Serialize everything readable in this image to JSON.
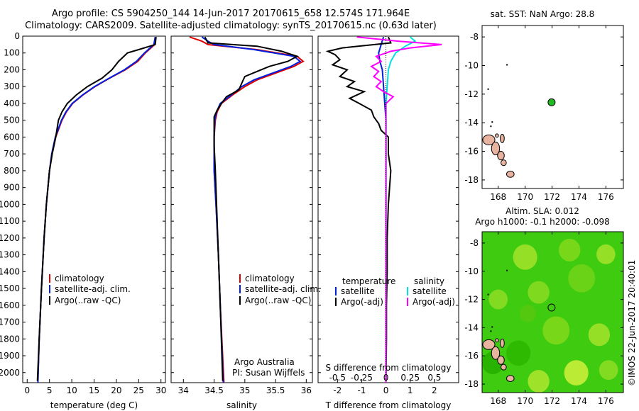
{
  "header": {
    "line1": "Argo profile: CS 5904250_144 14-Jun-2017 20170615_658 12.574S 171.964E",
    "line2": "Climatology: CARS2009. Satellite-adjusted climatology: synTS_20170615.nc (0.63d later)"
  },
  "colors": {
    "climatology": "#e00000",
    "satellite": "#0020e0",
    "argo": "#000000",
    "sal_satellite": "#00e0e0",
    "sal_argo": "#ff00ff",
    "land": "#e8b4a0",
    "map_green": "#33cc00"
  },
  "watermark": "©IMOS 22-Jun-2017 20:40:01",
  "chart_data": [
    {
      "type": "line",
      "id": "temperature",
      "xlabel": "temperature (deg C)",
      "xlim": [
        -1,
        31
      ],
      "ylim": [
        2060,
        0
      ],
      "xticks": [
        0,
        5,
        10,
        15,
        20,
        25,
        30
      ],
      "yticks": [
        0,
        100,
        200,
        300,
        400,
        500,
        600,
        700,
        800,
        900,
        1000,
        1100,
        1200,
        1300,
        1400,
        1500,
        1600,
        1700,
        1800,
        1900,
        2000
      ],
      "legend": [
        "climatology",
        "satellite-adj. clim.",
        "Argo(..raw -QC)"
      ],
      "series": [
        {
          "name": "climatology",
          "color": "#e00000",
          "depth": [
            5,
            50,
            100,
            150,
            200,
            250,
            300,
            350,
            400,
            450,
            500,
            600,
            700,
            800,
            1000,
            1200,
            1500,
            1800,
            2060
          ],
          "values": [
            28.8,
            28.6,
            26.5,
            24.8,
            22.0,
            18.5,
            15.2,
            12.5,
            10.2,
            8.8,
            7.8,
            6.4,
            5.6,
            5.0,
            4.3,
            3.8,
            3.2,
            2.7,
            2.4
          ]
        },
        {
          "name": "satellite-adj. clim.",
          "color": "#0020e0",
          "depth": [
            5,
            50,
            100,
            150,
            200,
            250,
            300,
            350,
            400,
            450,
            500,
            600,
            700,
            800,
            1000,
            1200,
            1500,
            1800,
            2060
          ],
          "values": [
            28.7,
            28.4,
            26.3,
            24.5,
            21.8,
            18.4,
            15.1,
            12.4,
            10.1,
            8.7,
            7.7,
            6.3,
            5.5,
            5.0,
            4.3,
            3.8,
            3.2,
            2.7,
            2.4
          ]
        },
        {
          "name": "Argo(..raw -QC)",
          "color": "#000000",
          "depth": [
            5,
            50,
            80,
            100,
            150,
            200,
            250,
            300,
            350,
            400,
            450,
            500,
            550,
            600,
            700,
            800,
            1000,
            1200,
            1500,
            1800,
            2050
          ],
          "values": [
            28.9,
            28.7,
            25.0,
            22.5,
            20.5,
            19.0,
            16.8,
            13.5,
            11.0,
            9.0,
            7.8,
            7.0,
            6.7,
            6.4,
            5.6,
            5.0,
            4.3,
            3.8,
            3.2,
            2.7,
            2.3
          ]
        }
      ]
    },
    {
      "type": "line",
      "id": "salinity",
      "xlabel": "salinity",
      "xlim": [
        33.8,
        36.1
      ],
      "ylim": [
        2060,
        0
      ],
      "xticks": [
        34,
        34.5,
        35,
        35.5,
        36
      ],
      "legend": [
        "climatology",
        "satellite-adj. clim.",
        "Argo(..raw -QC)"
      ],
      "annotation": [
        "Argo Australia",
        "PI: Susan Wijffels"
      ],
      "series": [
        {
          "name": "climatology",
          "color": "#e00000",
          "depth": [
            5,
            30,
            50,
            80,
            120,
            150,
            180,
            220,
            260,
            300,
            350,
            400,
            450,
            500,
            600,
            800,
            1000,
            1300,
            1600,
            2060
          ],
          "values": [
            34.1,
            34.3,
            34.4,
            35.2,
            35.85,
            35.95,
            35.8,
            35.5,
            35.2,
            35.0,
            34.8,
            34.62,
            34.55,
            34.52,
            34.5,
            34.5,
            34.53,
            34.57,
            34.6,
            34.66
          ]
        },
        {
          "name": "satellite-adj. clim.",
          "color": "#0020e0",
          "depth": [
            5,
            30,
            50,
            80,
            120,
            150,
            180,
            220,
            260,
            300,
            350,
            400,
            450,
            500,
            600,
            800,
            1000,
            1300,
            1600,
            2060
          ],
          "values": [
            34.3,
            34.4,
            34.5,
            35.15,
            35.8,
            35.9,
            35.75,
            35.45,
            35.15,
            34.95,
            34.78,
            34.6,
            34.54,
            34.51,
            34.5,
            34.5,
            34.53,
            34.57,
            34.6,
            34.65
          ]
        },
        {
          "name": "Argo(..raw -QC)",
          "color": "#000000",
          "depth": [
            5,
            40,
            60,
            90,
            120,
            150,
            180,
            210,
            240,
            280,
            320,
            360,
            400,
            440,
            480,
            550,
            650,
            800,
            1000,
            1300,
            1600,
            2050
          ],
          "values": [
            34.35,
            34.4,
            35.2,
            35.6,
            35.85,
            35.7,
            35.4,
            35.2,
            35.0,
            34.95,
            34.9,
            34.7,
            34.62,
            34.55,
            34.5,
            34.5,
            34.5,
            34.52,
            34.54,
            34.57,
            34.6,
            34.64
          ]
        }
      ]
    },
    {
      "type": "line",
      "id": "difference",
      "xlabel": "T difference from climatology",
      "toplabel": "S difference from climatology",
      "xlim": [
        -2.8,
        3.0
      ],
      "ylim": [
        2060,
        0
      ],
      "xticks": [
        -2,
        -1,
        0,
        1,
        2
      ],
      "sticks_labels": [
        "-0.5",
        "-0.25",
        "0",
        "0.25",
        "0.5"
      ],
      "sticks_values": [
        -2,
        -1,
        0,
        1,
        2
      ],
      "legend_left_title": "temperature",
      "legend_right_title": "salinity",
      "legend_left": [
        "satellite",
        "Argo(-adj)"
      ],
      "legend_right": [
        "satellite",
        "Argo(-adj)"
      ],
      "series": [
        {
          "name": "temperature satellite",
          "color": "#0020e0",
          "depth": [
            5,
            50,
            100,
            150,
            200,
            300,
            400,
            500,
            700,
            2060
          ],
          "values": [
            -0.1,
            -0.2,
            -0.3,
            -0.25,
            -0.15,
            -0.1,
            -0.05,
            0,
            0,
            0
          ]
        },
        {
          "name": "temperature Argo(-adj)",
          "color": "#000000",
          "depth": [
            5,
            40,
            70,
            90,
            110,
            140,
            170,
            200,
            240,
            270,
            300,
            330,
            370,
            400,
            440,
            480,
            520,
            560,
            600,
            700,
            800,
            900,
            1000,
            1200,
            1400,
            1600,
            1800,
            2050
          ],
          "values": [
            0.1,
            0.2,
            -1.8,
            -2.4,
            -2.1,
            -1.9,
            -2.2,
            -1.6,
            -1.9,
            -1.3,
            -1.6,
            -0.9,
            -1.5,
            -1.1,
            -0.6,
            -0.5,
            -0.3,
            -0.2,
            0.1,
            0.1,
            0.2,
            0.15,
            0.1,
            0.05,
            0.05,
            0.02,
            0.02,
            0.0
          ]
        },
        {
          "name": "salinity satellite",
          "color": "#00e0e0",
          "depth": [
            5,
            30,
            60,
            100,
            150,
            200,
            300,
            400,
            600,
            2060
          ],
          "values": [
            1.0,
            1.2,
            0.8,
            0.4,
            0.2,
            0.1,
            0.05,
            0,
            0,
            0
          ]
        },
        {
          "name": "salinity Argo(-adj)",
          "color": "#ff00ff",
          "depth": [
            5,
            30,
            50,
            70,
            90,
            120,
            150,
            180,
            210,
            240,
            270,
            300,
            330,
            360,
            400,
            450,
            2060
          ],
          "values": [
            -1.2,
            0.5,
            2.3,
            1.0,
            0.2,
            -0.4,
            -0.2,
            -0.6,
            -0.3,
            -0.5,
            -0.2,
            -0.4,
            -0.1,
            0.3,
            0.0,
            0.0,
            0.0
          ]
        }
      ]
    },
    {
      "type": "scatter",
      "id": "sst-map",
      "title": "sat. SST: NaN Argo: 28.8",
      "xlim": [
        166.8,
        177.3
      ],
      "ylim": [
        -18.6,
        -7.2
      ],
      "xticks": [
        168,
        170,
        172,
        174,
        176
      ],
      "yticks": [
        -8,
        -10,
        -12,
        -14,
        -16,
        -18
      ],
      "float_position": [
        171.964,
        -12.574
      ]
    },
    {
      "type": "heatmap",
      "id": "sla-map",
      "title": [
        "Altim. SLA: 0.012",
        "Argo h1000: -0.1 h2000: -0.098"
      ],
      "xlim": [
        166.8,
        177.3
      ],
      "ylim": [
        -18.6,
        -7.2
      ],
      "xticks": [
        168,
        170,
        172,
        174,
        176
      ],
      "yticks": [
        -8,
        -10,
        -12,
        -14,
        -16,
        -18
      ],
      "float_position": [
        171.964,
        -12.574
      ]
    }
  ]
}
